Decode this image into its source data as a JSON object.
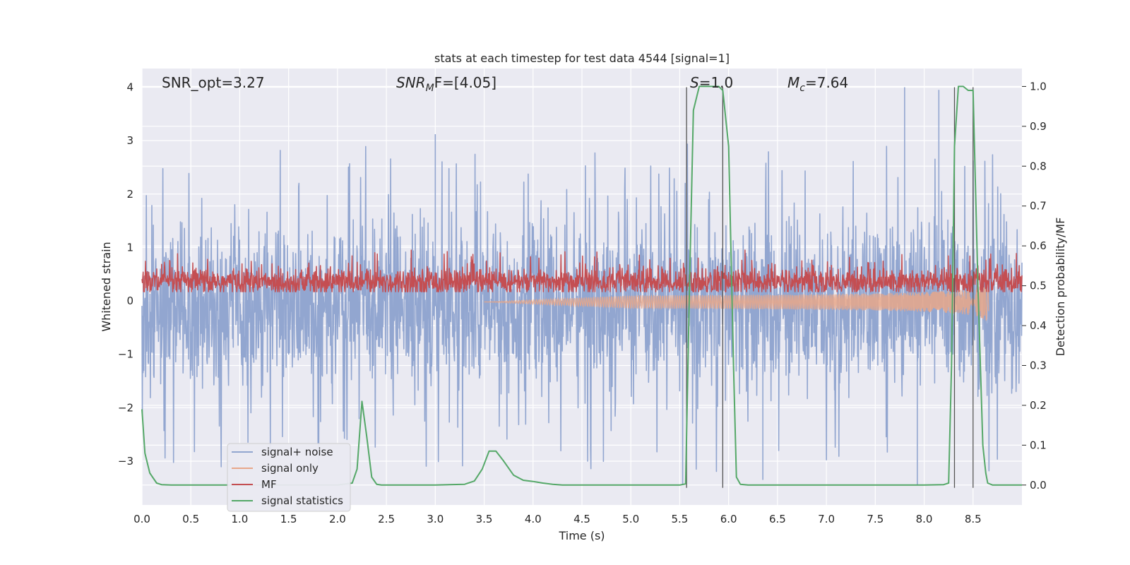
{
  "chart_data": {
    "type": "line",
    "title": "stats at each timestep for test data 4544 [signal=1]",
    "xlabel": "Time (s)",
    "ylabel_left": "Whitened strain",
    "ylabel_right": "Detection probability/MF",
    "xlim": [
      0,
      9.0
    ],
    "ylim_left": [
      -3.82,
      4.35
    ],
    "ylim_right": [
      -0.05,
      1.045
    ],
    "x_ticks": [
      0.0,
      0.5,
      1.0,
      1.5,
      2.0,
      2.5,
      3.0,
      3.5,
      4.0,
      4.5,
      5.0,
      5.5,
      6.0,
      6.5,
      7.0,
      7.5,
      8.0,
      8.5
    ],
    "x_tick_labels": [
      "0.0",
      "0.5",
      "1.0",
      "1.5",
      "2.0",
      "2.5",
      "3.0",
      "3.5",
      "4.0",
      "4.5",
      "5.0",
      "5.5",
      "6.0",
      "6.5",
      "7.0",
      "7.5",
      "8.0",
      "8.5"
    ],
    "y_left_ticks": [
      4,
      3,
      2,
      1,
      0,
      -1,
      -2,
      -3
    ],
    "y_left_tick_labels": [
      "4",
      "3",
      "2",
      "1",
      "0",
      "−1",
      "−2",
      "−3"
    ],
    "y_right_ticks": [
      1.0,
      0.9,
      0.8,
      0.7,
      0.6,
      0.5,
      0.4,
      0.3,
      0.2,
      0.1,
      0.0
    ],
    "y_right_tick_labels": [
      "1.0",
      "0.9",
      "0.8",
      "0.7",
      "0.6",
      "0.5",
      "0.4",
      "0.3",
      "0.2",
      "0.1",
      "0.0"
    ],
    "grid": true,
    "legend_position": "lower-left",
    "annotations": {
      "snr_opt": "SNR_opt=3.27",
      "snr_mf_main": "SNR",
      "snr_mf_sub": "M",
      "snr_mf_tail": "F=[4.05]",
      "s_main": "S",
      "s_tail": "=1.0",
      "mc_main": "M",
      "mc_sub": "c",
      "mc_tail": "=7.64"
    },
    "vertical_lines_x": [
      5.57,
      5.94,
      8.31,
      8.5
    ],
    "vertical_lines_y": [
      -3.5,
      4.0
    ],
    "series": [
      {
        "name": "signal+ noise",
        "color": "#92a6d0",
        "axis": "left",
        "style": "noise",
        "center": -0.1,
        "amplitude_envelope": 1.55,
        "peak_max": 4.0,
        "peak_min": -3.5
      },
      {
        "name": "signal only",
        "color": "#e8a78a",
        "axis": "left",
        "style": "chirp",
        "chirp_start_x": 3.5,
        "chirp_end_x": 8.66,
        "chirp_max_amp": 0.45
      },
      {
        "name": "MF",
        "color": "#c44e52",
        "axis": "right",
        "style": "noise",
        "center": 0.51,
        "range": [
          0.485,
          0.59
        ]
      },
      {
        "name": "signal statistics",
        "color": "#55a868",
        "axis": "right",
        "style": "line",
        "x": [
          0.0,
          0.03,
          0.08,
          0.15,
          0.2,
          0.3,
          0.5,
          1.0,
          1.5,
          2.0,
          2.15,
          2.2,
          2.25,
          2.3,
          2.35,
          2.4,
          2.45,
          2.5,
          3.0,
          3.3,
          3.4,
          3.48,
          3.55,
          3.62,
          3.7,
          3.8,
          3.9,
          4.0,
          4.1,
          4.2,
          4.3,
          4.5,
          5.0,
          5.5,
          5.56,
          5.6,
          5.64,
          5.7,
          5.8,
          5.9,
          5.94,
          6.0,
          6.05,
          6.08,
          6.12,
          6.2,
          7.0,
          8.0,
          8.2,
          8.25,
          8.28,
          8.31,
          8.35,
          8.4,
          8.45,
          8.5,
          8.55,
          8.6,
          8.63,
          8.65,
          8.7,
          9.0
        ],
        "y": [
          0.19,
          0.08,
          0.03,
          0.005,
          0.001,
          0.0,
          0.0,
          0.0,
          0.0,
          0.0,
          0.005,
          0.04,
          0.21,
          0.12,
          0.02,
          0.002,
          0.0,
          0.0,
          0.0,
          0.002,
          0.01,
          0.04,
          0.085,
          0.085,
          0.06,
          0.025,
          0.012,
          0.009,
          0.005,
          0.002,
          0.0,
          0.0,
          0.0,
          0.0,
          0.003,
          0.5,
          0.94,
          1.0,
          1.0,
          1.0,
          0.99,
          0.85,
          0.3,
          0.02,
          0.002,
          0.0,
          0.0,
          0.0,
          0.001,
          0.005,
          0.3,
          0.85,
          1.0,
          1.0,
          0.99,
          0.99,
          0.5,
          0.1,
          0.03,
          0.005,
          0.0,
          0.0
        ]
      }
    ]
  }
}
